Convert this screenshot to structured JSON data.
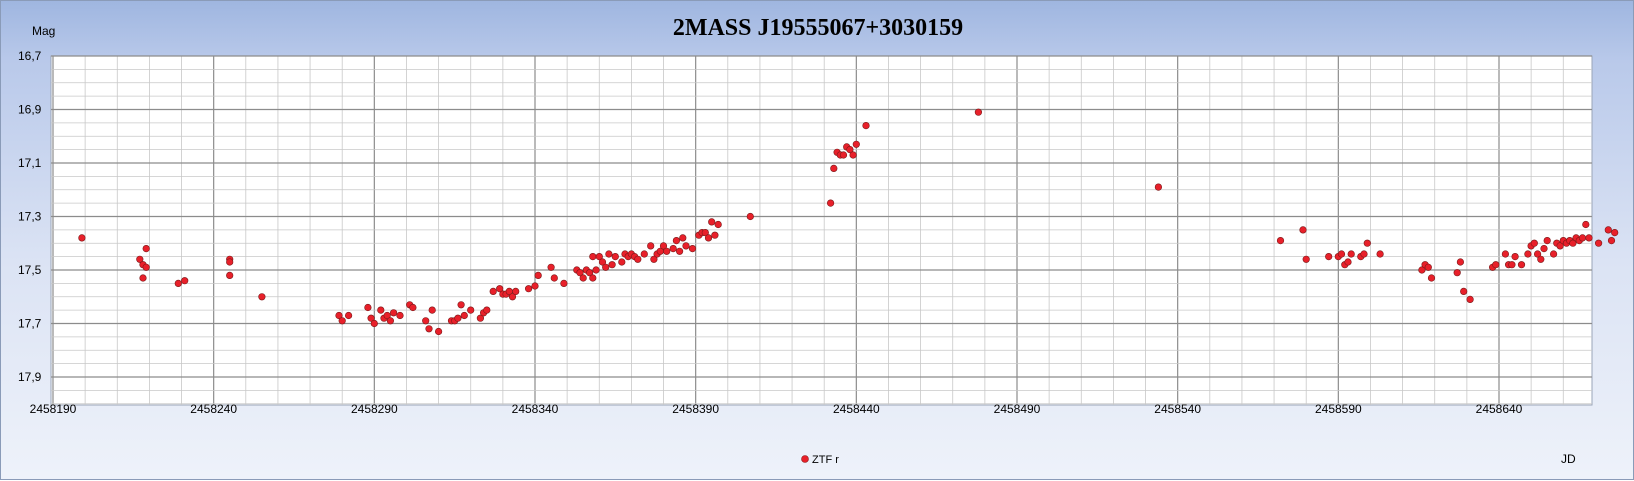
{
  "chart_data": {
    "type": "scatter",
    "title": "2MASS J19555067+3030159",
    "ylabel": "Mag",
    "xlabel": "JD",
    "x_ticks": [
      "2458190",
      "2458240",
      "2458290",
      "2458340",
      "2458390",
      "2458440",
      "2458490",
      "2458540",
      "2458590",
      "2458640"
    ],
    "y_ticks": [
      "16,7",
      "16,9",
      "17,1",
      "17,3",
      "17,5",
      "17,7",
      "17,9"
    ],
    "xlim": [
      2458190,
      2458663
    ],
    "ylim": [
      16.7,
      18.0
    ],
    "y_inverted": true,
    "grid": true,
    "legend_position": "bottom-center",
    "series": [
      {
        "name": "ZTF r",
        "color": "#e8202a",
        "points": [
          [
            2458199,
            17.38
          ],
          [
            2458217,
            17.46
          ],
          [
            2458218,
            17.53
          ],
          [
            2458218,
            17.48
          ],
          [
            2458219,
            17.49
          ],
          [
            2458219,
            17.42
          ],
          [
            2458229,
            17.55
          ],
          [
            2458231,
            17.54
          ],
          [
            2458245,
            17.46
          ],
          [
            2458245,
            17.47
          ],
          [
            2458245,
            17.52
          ],
          [
            2458255,
            17.6
          ],
          [
            2458279,
            17.67
          ],
          [
            2458280,
            17.69
          ],
          [
            2458282,
            17.67
          ],
          [
            2458288,
            17.64
          ],
          [
            2458289,
            17.68
          ],
          [
            2458290,
            17.7
          ],
          [
            2458292,
            17.65
          ],
          [
            2458293,
            17.68
          ],
          [
            2458294,
            17.67
          ],
          [
            2458295,
            17.69
          ],
          [
            2458296,
            17.66
          ],
          [
            2458298,
            17.67
          ],
          [
            2458301,
            17.63
          ],
          [
            2458302,
            17.64
          ],
          [
            2458306,
            17.69
          ],
          [
            2458307,
            17.72
          ],
          [
            2458308,
            17.65
          ],
          [
            2458310,
            17.73
          ],
          [
            2458314,
            17.69
          ],
          [
            2458315,
            17.69
          ],
          [
            2458316,
            17.68
          ],
          [
            2458317,
            17.63
          ],
          [
            2458318,
            17.67
          ],
          [
            2458320,
            17.65
          ],
          [
            2458323,
            17.68
          ],
          [
            2458324,
            17.66
          ],
          [
            2458325,
            17.65
          ],
          [
            2458327,
            17.58
          ],
          [
            2458329,
            17.57
          ],
          [
            2458330,
            17.59
          ],
          [
            2458331,
            17.59
          ],
          [
            2458332,
            17.58
          ],
          [
            2458333,
            17.6
          ],
          [
            2458334,
            17.58
          ],
          [
            2458338,
            17.57
          ],
          [
            2458340,
            17.56
          ],
          [
            2458341,
            17.52
          ],
          [
            2458345,
            17.49
          ],
          [
            2458346,
            17.53
          ],
          [
            2458349,
            17.55
          ],
          [
            2458353,
            17.5
          ],
          [
            2458354,
            17.51
          ],
          [
            2458355,
            17.53
          ],
          [
            2458356,
            17.5
          ],
          [
            2458357,
            17.51
          ],
          [
            2458358,
            17.53
          ],
          [
            2458358,
            17.45
          ],
          [
            2458359,
            17.5
          ],
          [
            2458360,
            17.45
          ],
          [
            2458361,
            17.47
          ],
          [
            2458362,
            17.49
          ],
          [
            2458363,
            17.44
          ],
          [
            2458364,
            17.48
          ],
          [
            2458365,
            17.45
          ],
          [
            2458367,
            17.47
          ],
          [
            2458368,
            17.44
          ],
          [
            2458369,
            17.45
          ],
          [
            2458370,
            17.44
          ],
          [
            2458371,
            17.45
          ],
          [
            2458372,
            17.46
          ],
          [
            2458374,
            17.44
          ],
          [
            2458376,
            17.41
          ],
          [
            2458377,
            17.46
          ],
          [
            2458378,
            17.44
          ],
          [
            2458379,
            17.43
          ],
          [
            2458380,
            17.41
          ],
          [
            2458381,
            17.43
          ],
          [
            2458383,
            17.42
          ],
          [
            2458384,
            17.39
          ],
          [
            2458385,
            17.43
          ],
          [
            2458386,
            17.38
          ],
          [
            2458387,
            17.41
          ],
          [
            2458389,
            17.42
          ],
          [
            2458391,
            17.37
          ],
          [
            2458392,
            17.36
          ],
          [
            2458393,
            17.36
          ],
          [
            2458394,
            17.38
          ],
          [
            2458395,
            17.32
          ],
          [
            2458396,
            17.37
          ],
          [
            2458397,
            17.33
          ],
          [
            2458407,
            17.3
          ],
          [
            2458432,
            17.25
          ],
          [
            2458433,
            17.12
          ],
          [
            2458434,
            17.06
          ],
          [
            2458435,
            17.07
          ],
          [
            2458436,
            17.07
          ],
          [
            2458437,
            17.04
          ],
          [
            2458438,
            17.05
          ],
          [
            2458439,
            17.07
          ],
          [
            2458440,
            17.03
          ],
          [
            2458443,
            16.96
          ],
          [
            2458478,
            16.91
          ],
          [
            2458534,
            17.19
          ],
          [
            2458572,
            17.39
          ],
          [
            2458579,
            17.35
          ],
          [
            2458580,
            17.46
          ],
          [
            2458587,
            17.45
          ],
          [
            2458590,
            17.45
          ],
          [
            2458591,
            17.44
          ],
          [
            2458592,
            17.48
          ],
          [
            2458593,
            17.47
          ],
          [
            2458594,
            17.44
          ],
          [
            2458597,
            17.45
          ],
          [
            2458598,
            17.44
          ],
          [
            2458599,
            17.4
          ],
          [
            2458603,
            17.44
          ],
          [
            2458616,
            17.5
          ],
          [
            2458617,
            17.48
          ],
          [
            2458618,
            17.49
          ],
          [
            2458619,
            17.53
          ],
          [
            2458627,
            17.51
          ],
          [
            2458628,
            17.47
          ],
          [
            2458629,
            17.58
          ],
          [
            2458631,
            17.61
          ],
          [
            2458638,
            17.49
          ],
          [
            2458639,
            17.48
          ],
          [
            2458642,
            17.44
          ],
          [
            2458643,
            17.48
          ],
          [
            2458644,
            17.48
          ],
          [
            2458645,
            17.45
          ],
          [
            2458647,
            17.48
          ],
          [
            2458649,
            17.44
          ],
          [
            2458650,
            17.41
          ],
          [
            2458651,
            17.4
          ],
          [
            2458652,
            17.44
          ],
          [
            2458653,
            17.46
          ],
          [
            2458654,
            17.42
          ],
          [
            2458655,
            17.39
          ],
          [
            2458657,
            17.44
          ],
          [
            2458658,
            17.4
          ],
          [
            2458659,
            17.41
          ],
          [
            2458660,
            17.39
          ],
          [
            2458661,
            17.4
          ],
          [
            2458662,
            17.39
          ],
          [
            2458663,
            17.4
          ],
          [
            2458664,
            17.38
          ],
          [
            2458665,
            17.39
          ],
          [
            2458666,
            17.38
          ],
          [
            2458667,
            17.33
          ],
          [
            2458668,
            17.38
          ],
          [
            2458671,
            17.4
          ],
          [
            2458674,
            17.35
          ],
          [
            2458675,
            17.39
          ],
          [
            2458676,
            17.36
          ]
        ]
      }
    ]
  }
}
